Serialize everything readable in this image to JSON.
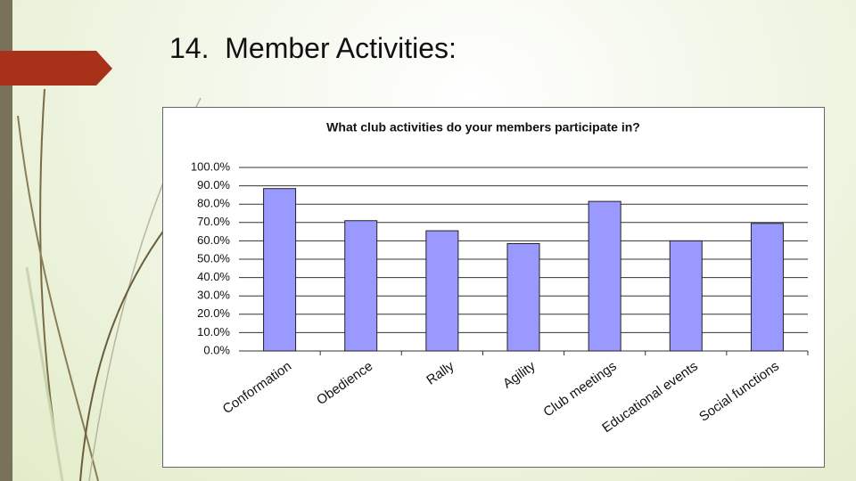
{
  "slide": {
    "title": "14.  Member Activities:"
  },
  "chart_data": {
    "type": "bar",
    "title": "What club activities do your members participate in?",
    "categories": [
      "Conformation",
      "Obedience",
      "Rally",
      "Agility",
      "Club meetings",
      "Educational events",
      "Social functions"
    ],
    "values": [
      88.5,
      71,
      65.5,
      58.5,
      81.5,
      60,
      69.5
    ],
    "color": "#9999ff",
    "ylim": [
      0,
      100
    ],
    "yticks": [
      {
        "value": 0,
        "label": "0.0%"
      },
      {
        "value": 10,
        "label": "10.0%"
      },
      {
        "value": 20,
        "label": "20.0%"
      },
      {
        "value": 30,
        "label": "30.0%"
      },
      {
        "value": 40,
        "label": "40.0%"
      },
      {
        "value": 50,
        "label": "50.0%"
      },
      {
        "value": 60,
        "label": "60.0%"
      },
      {
        "value": 70,
        "label": "70.0%"
      },
      {
        "value": 80,
        "label": "80.0%"
      },
      {
        "value": 90,
        "label": "90.0%"
      },
      {
        "value": 100,
        "label": "100.0%"
      }
    ],
    "grid": true
  }
}
